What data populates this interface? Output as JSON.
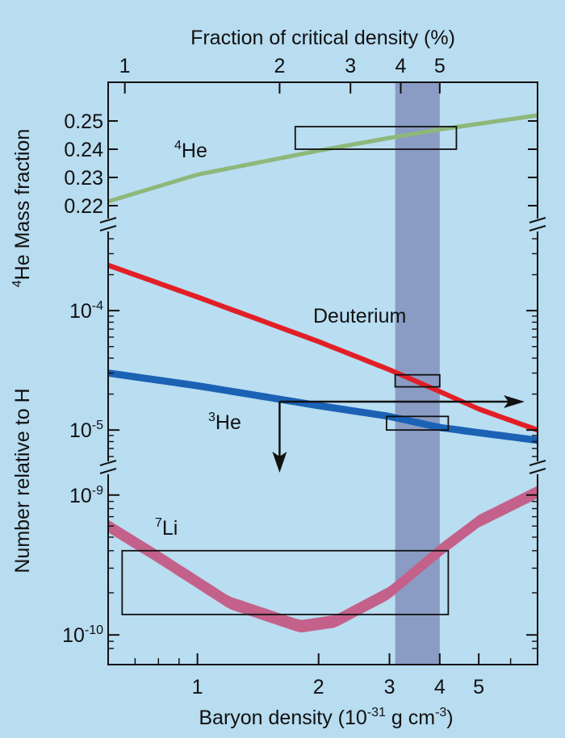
{
  "chart_data": {
    "type": "line",
    "title": "",
    "top_axis": {
      "label": "Fraction of critical density (%)",
      "ticks": [
        1,
        2,
        3,
        4,
        5
      ],
      "tick_labels": [
        "1",
        "2",
        "3",
        "4",
        "5"
      ]
    },
    "x_axis": {
      "label_main": "Baryon density (10",
      "label_exp": "-31",
      "label_tail": " g cm",
      "label_exp2": "-3",
      "label_close": ")",
      "scale": "log",
      "range": [
        0.6,
        7.0
      ],
      "ticks": [
        1,
        2,
        3,
        4,
        5
      ],
      "tick_labels": [
        "1",
        "2",
        "3",
        "4",
        "5"
      ]
    },
    "y_axis_upper": {
      "label_sup": "4",
      "label_main": "He Mass fraction",
      "range": [
        0.218,
        0.258
      ],
      "ticks": [
        0.22,
        0.23,
        0.24,
        0.25
      ],
      "tick_labels": [
        "0.22",
        "0.23",
        "0.24",
        "0.25"
      ]
    },
    "y_axis_lower": {
      "label": "Number relative to H",
      "middle": {
        "scale": "log",
        "range": [
          6e-06,
          0.0004
        ],
        "ticks": [
          1e-05,
          0.0001
        ],
        "tick_labels": [
          {
            "base": "10",
            "exp": "-5"
          },
          {
            "base": "10",
            "exp": "-4"
          }
        ]
      },
      "bottom": {
        "scale": "log",
        "range": [
          8e-11,
          1.3e-09
        ],
        "ticks": [
          1e-10,
          1e-09
        ],
        "tick_labels": [
          {
            "base": "10",
            "exp": "-10"
          },
          {
            "base": "10",
            "exp": "-9"
          }
        ]
      }
    },
    "favored_band": {
      "x_range": [
        3.1,
        4.0
      ],
      "color": "#8a9cc4"
    },
    "series": [
      {
        "name_sup": "4",
        "name": "He",
        "panel": "upper",
        "color": "#8db87a",
        "x": [
          0.6,
          1.0,
          2.0,
          3.0,
          4.0,
          5.0,
          7.0
        ],
        "y": [
          0.2215,
          0.231,
          0.2395,
          0.244,
          0.247,
          0.249,
          0.252
        ],
        "width": 0.0015
      },
      {
        "name": "Deuterium",
        "panel": "middle",
        "color": "#e21f26",
        "x": [
          0.6,
          1.0,
          2.0,
          3.0,
          4.0,
          5.0,
          7.0
        ],
        "y": [
          0.00024,
          0.00013,
          5.5e-05,
          3.2e-05,
          2.1e-05,
          1.5e-05,
          1e-05
        ],
        "width_log10": 0.045
      },
      {
        "name_sup": "3",
        "name": "He",
        "panel": "middle",
        "color": "#1b62b5",
        "x": [
          0.6,
          1.0,
          2.0,
          3.0,
          4.0,
          5.0,
          7.0
        ],
        "y": [
          3e-05,
          2.35e-05,
          1.6e-05,
          1.3e-05,
          1.05e-05,
          9.5e-06,
          8.2e-06
        ],
        "width_log10": 0.06
      },
      {
        "name_sup": "7",
        "name": "Li",
        "panel": "bottom",
        "color": "#c4618a",
        "x": [
          0.6,
          0.8,
          1.2,
          1.8,
          2.2,
          3.0,
          4.0,
          5.0,
          7.0
        ],
        "y": [
          6e-10,
          3.6e-10,
          1.7e-10,
          1.15e-10,
          1.25e-10,
          2e-10,
          4e-10,
          6.5e-10,
          1.05e-09
        ],
        "width_log10": 0.09
      }
    ],
    "observation_boxes": [
      {
        "series": "4He",
        "x_range": [
          1.75,
          4.4
        ],
        "y_range": [
          0.24,
          0.248
        ]
      },
      {
        "series": "Deuterium",
        "x_range": [
          3.1,
          4.0
        ],
        "y_range": [
          2.3e-05,
          2.9e-05
        ]
      },
      {
        "series": "3He",
        "x_range": [
          2.95,
          4.2
        ],
        "y_range": [
          1e-05,
          1.3e-05
        ]
      },
      {
        "series": "7Li",
        "x_range": [
          0.65,
          4.2
        ],
        "y_range": [
          1.4e-10,
          4e-10
        ]
      }
    ],
    "limit_arrows": [
      {
        "from_x": 1.6,
        "to_x": 6.5,
        "direction": "right"
      },
      {
        "from_x": 1.6,
        "direction": "down"
      }
    ]
  }
}
